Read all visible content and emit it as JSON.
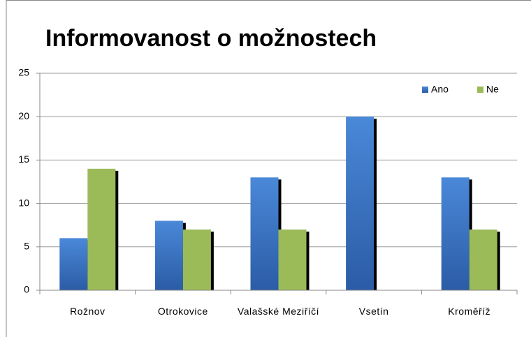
{
  "chart_data": {
    "type": "bar",
    "title": "Informovanost o možnostech",
    "categories": [
      "Rožnov",
      "Otrokovice",
      "Valašské Meziříčí",
      "Vsetín",
      "Kroměříž"
    ],
    "series": [
      {
        "name": "Ano",
        "color": "#3a74c4",
        "values": [
          6,
          8,
          13,
          20,
          13
        ]
      },
      {
        "name": "Ne",
        "color": "#9bbb59",
        "values": [
          14,
          7,
          7,
          0,
          7
        ]
      }
    ],
    "ylim": [
      0,
      25
    ],
    "yticks": [
      0,
      5,
      10,
      15,
      20,
      25
    ],
    "grid": true,
    "legend": "top-right"
  }
}
